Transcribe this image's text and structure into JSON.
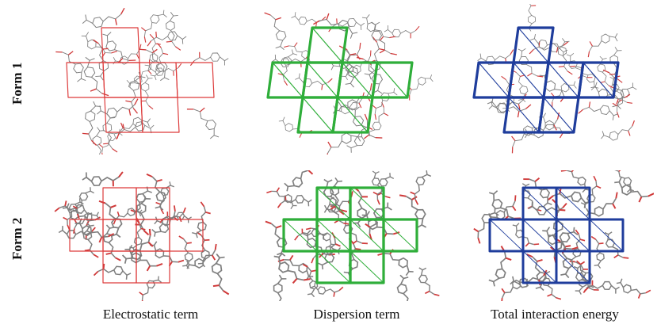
{
  "rows": [
    {
      "label": "Form 1"
    },
    {
      "label": "Form 2"
    }
  ],
  "columns": [
    {
      "label": "Electrostatic term",
      "frame_color": "#dd3b3b"
    },
    {
      "label": "Dispersion term",
      "frame_color": "#2fae3a"
    },
    {
      "label": "Total interaction energy",
      "frame_color": "#1f3d9c"
    }
  ],
  "molecule_colors": {
    "carbon": "#7f7f7f",
    "oxygen": "#d03a3a"
  }
}
